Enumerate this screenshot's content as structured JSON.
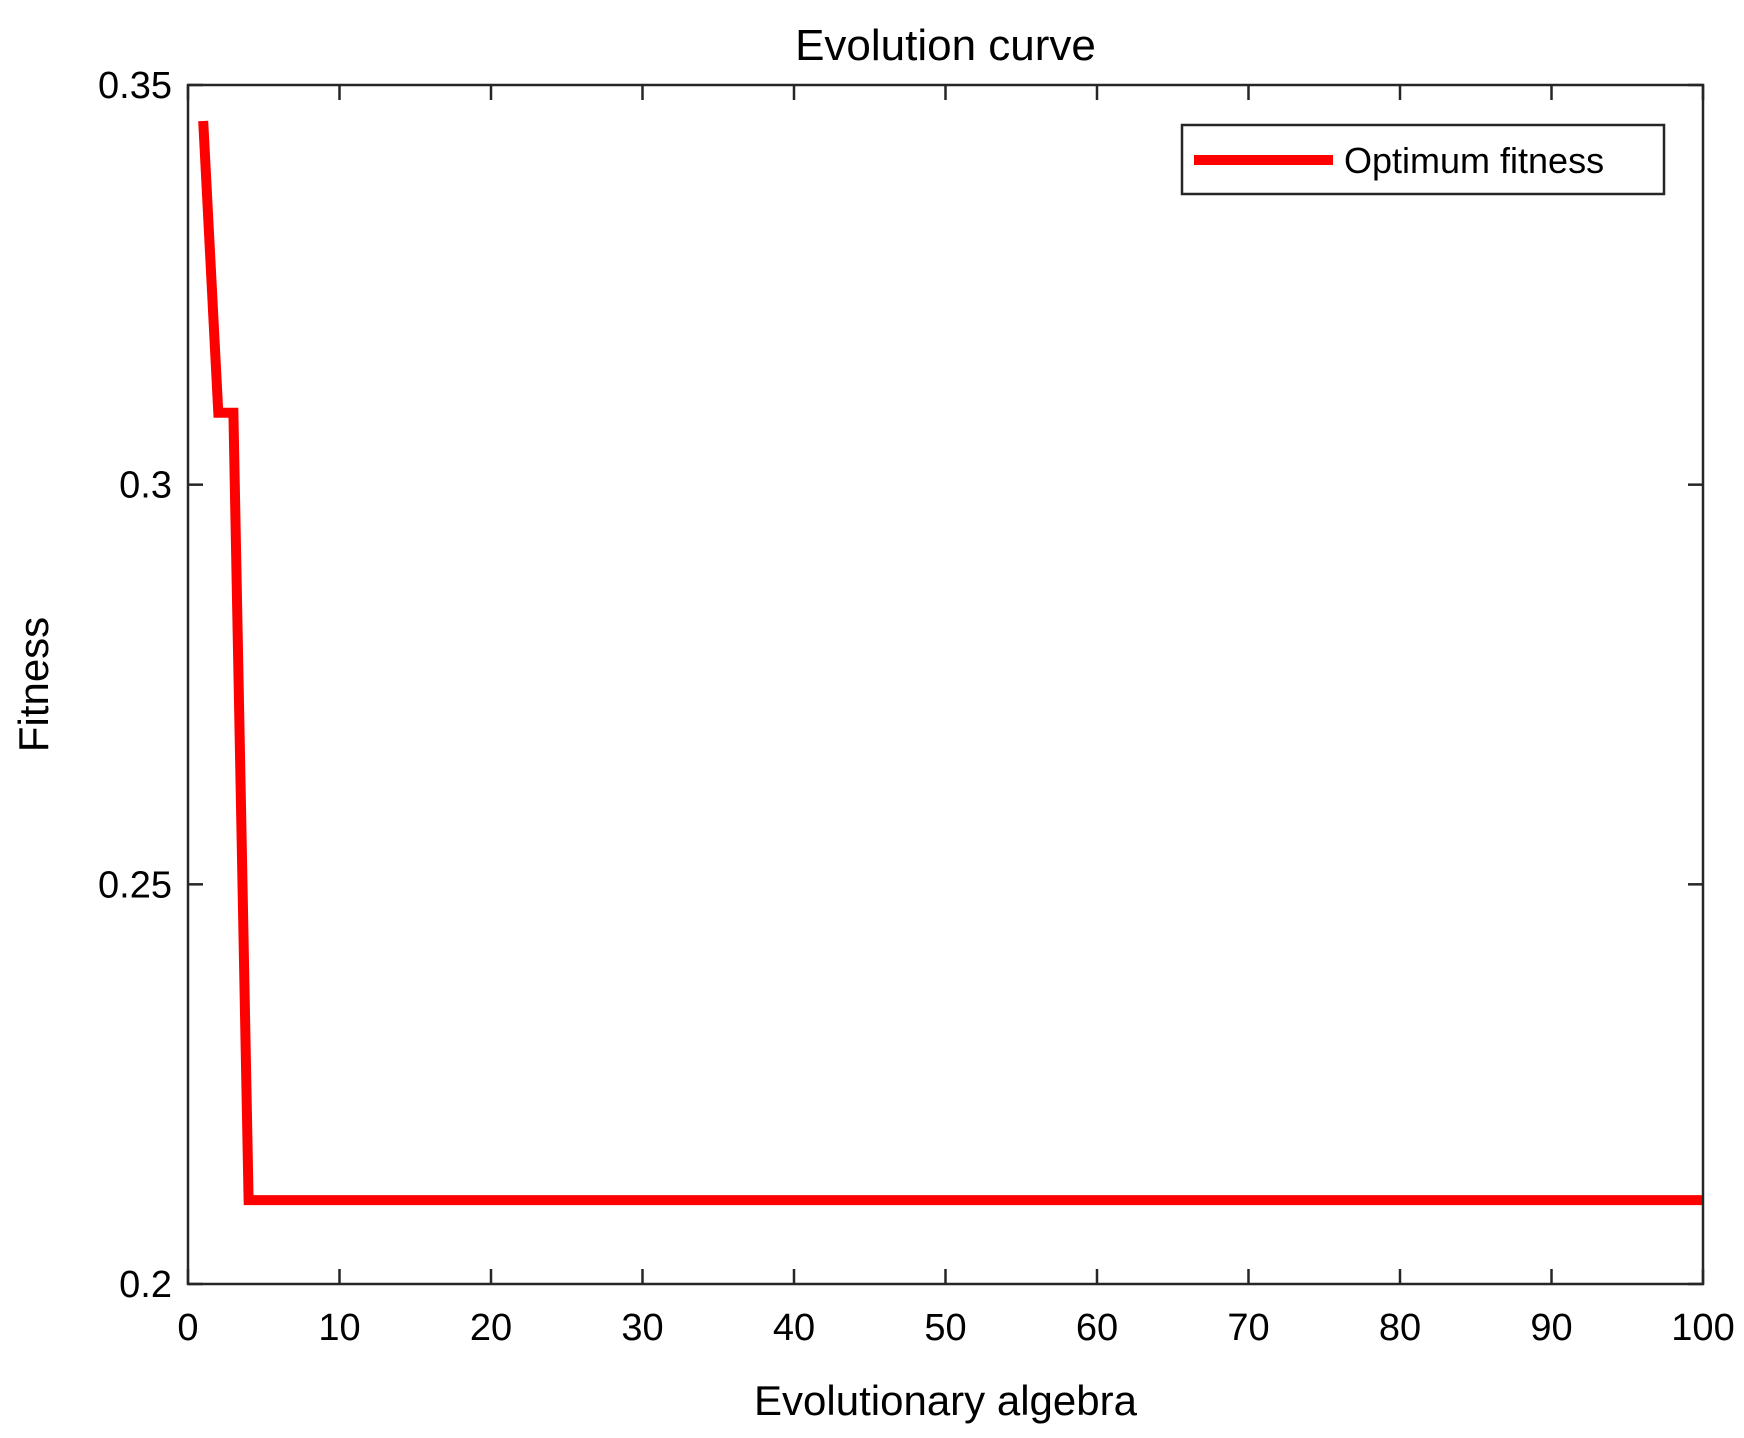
{
  "chart_data": {
    "type": "line",
    "title": "Evolution curve",
    "xlabel": "Evolutionary algebra",
    "ylabel": "Fitness",
    "xlim": [
      0,
      100
    ],
    "ylim": [
      0.2,
      0.35
    ],
    "xticks": [
      0,
      10,
      20,
      30,
      40,
      50,
      60,
      70,
      80,
      90,
      100
    ],
    "xtick_labels": [
      "0",
      "10",
      "20",
      "30",
      "40",
      "50",
      "60",
      "70",
      "80",
      "90",
      "100"
    ],
    "yticks": [
      0.2,
      0.25,
      0.3,
      0.35
    ],
    "ytick_labels": [
      "0.2",
      "0.25",
      "0.3",
      "0.35"
    ],
    "grid": false,
    "legend_position": "top-right",
    "series": [
      {
        "name": "Optimum fitness",
        "color": "#ff0000",
        "x": [
          1,
          2,
          3,
          4,
          5,
          10,
          20,
          30,
          40,
          50,
          60,
          70,
          80,
          90,
          100
        ],
        "y": [
          0.3455,
          0.309,
          0.309,
          0.2105,
          0.2105,
          0.2105,
          0.2105,
          0.2105,
          0.2105,
          0.2105,
          0.2105,
          0.2105,
          0.2105,
          0.2105,
          0.2105
        ]
      }
    ]
  }
}
